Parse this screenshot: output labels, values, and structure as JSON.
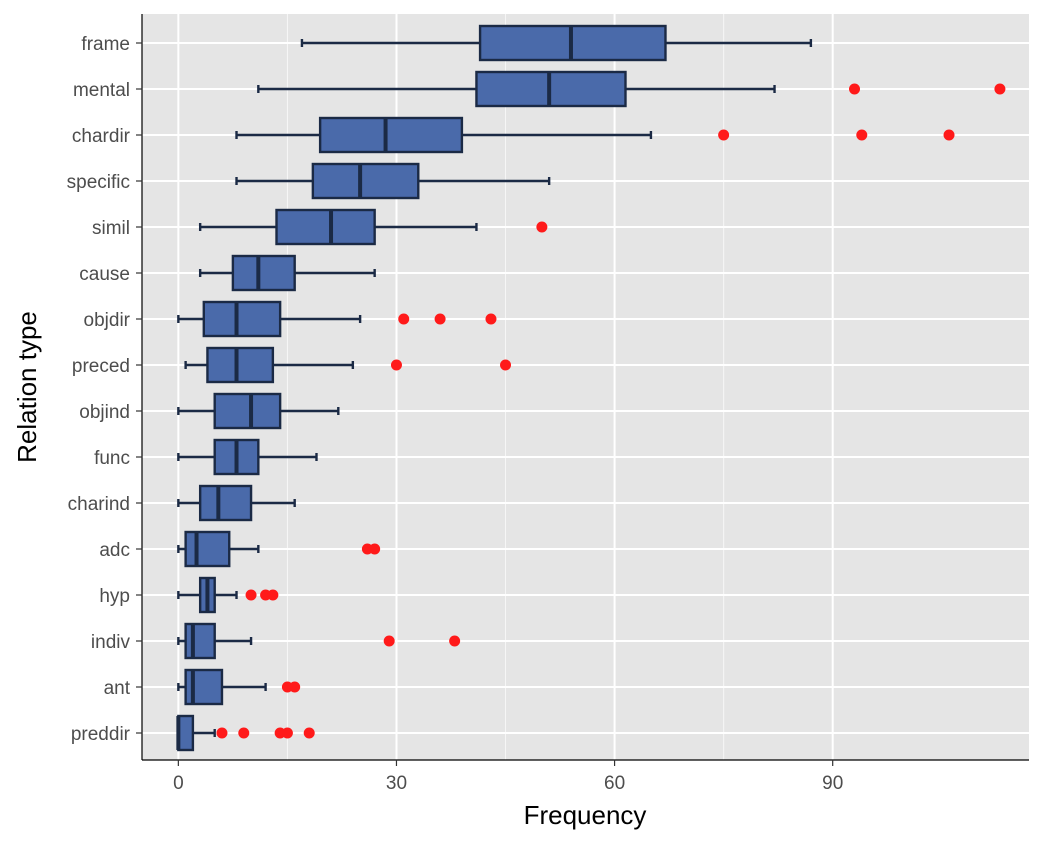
{
  "chart_data": {
    "type": "boxplot",
    "orientation": "horizontal",
    "xlabel": "Frequency",
    "ylabel": "Relation type",
    "xlim": [
      -5,
      117
    ],
    "xticks": [
      0,
      30,
      60,
      90
    ],
    "grid": true,
    "legend": "none",
    "colors": {
      "panel": "#e5e5e5",
      "grid": "#ffffff",
      "box_fill": "#4a6aaa",
      "box_stroke": "#1b2a45",
      "outlier": "#ff1a1a"
    },
    "categories": [
      "frame",
      "mental",
      "chardir",
      "specific",
      "simil",
      "cause",
      "objdir",
      "preced",
      "objind",
      "func",
      "charind",
      "adc",
      "hyp",
      "indiv",
      "ant",
      "preddir"
    ],
    "boxes": [
      {
        "category": "frame",
        "whisker_low": 17,
        "q1": 41.5,
        "median": 54,
        "q3": 67,
        "whisker_high": 87,
        "outliers": []
      },
      {
        "category": "mental",
        "whisker_low": 11,
        "q1": 41,
        "median": 51,
        "q3": 61.5,
        "whisker_high": 82,
        "outliers": [
          93,
          113
        ]
      },
      {
        "category": "chardir",
        "whisker_low": 8,
        "q1": 19.5,
        "median": 28.5,
        "q3": 39,
        "whisker_high": 65,
        "outliers": [
          75,
          94,
          106
        ]
      },
      {
        "category": "specific",
        "whisker_low": 8,
        "q1": 18.5,
        "median": 25,
        "q3": 33,
        "whisker_high": 51,
        "outliers": []
      },
      {
        "category": "simil",
        "whisker_low": 3,
        "q1": 13.5,
        "median": 21,
        "q3": 27,
        "whisker_high": 41,
        "outliers": [
          50
        ]
      },
      {
        "category": "cause",
        "whisker_low": 3,
        "q1": 7.5,
        "median": 11,
        "q3": 16,
        "whisker_high": 27,
        "outliers": []
      },
      {
        "category": "objdir",
        "whisker_low": 0,
        "q1": 3.5,
        "median": 8,
        "q3": 14,
        "whisker_high": 25,
        "outliers": [
          31,
          36,
          43
        ]
      },
      {
        "category": "preced",
        "whisker_low": 1,
        "q1": 4,
        "median": 8,
        "q3": 13,
        "whisker_high": 24,
        "outliers": [
          30,
          45
        ]
      },
      {
        "category": "objind",
        "whisker_low": 0,
        "q1": 5,
        "median": 10,
        "q3": 14,
        "whisker_high": 22,
        "outliers": []
      },
      {
        "category": "func",
        "whisker_low": 0,
        "q1": 5,
        "median": 8,
        "q3": 11,
        "whisker_high": 19,
        "outliers": []
      },
      {
        "category": "charind",
        "whisker_low": 0,
        "q1": 3,
        "median": 5.5,
        "q3": 10,
        "whisker_high": 16,
        "outliers": []
      },
      {
        "category": "adc",
        "whisker_low": 0,
        "q1": 1,
        "median": 2.5,
        "q3": 7,
        "whisker_high": 11,
        "outliers": [
          26,
          27
        ]
      },
      {
        "category": "hyp",
        "whisker_low": 0,
        "q1": 3,
        "median": 4,
        "q3": 5,
        "whisker_high": 8,
        "outliers": [
          10,
          12,
          13
        ]
      },
      {
        "category": "indiv",
        "whisker_low": 0,
        "q1": 1,
        "median": 2,
        "q3": 5,
        "whisker_high": 10,
        "outliers": [
          29,
          38
        ]
      },
      {
        "category": "ant",
        "whisker_low": 0,
        "q1": 1,
        "median": 2,
        "q3": 6,
        "whisker_high": 12,
        "outliers": [
          15,
          16
        ]
      },
      {
        "category": "preddir",
        "whisker_low": 0,
        "q1": 0,
        "median": 0,
        "q3": 2,
        "whisker_high": 5,
        "outliers": [
          6,
          9,
          14,
          15,
          18
        ]
      }
    ]
  }
}
